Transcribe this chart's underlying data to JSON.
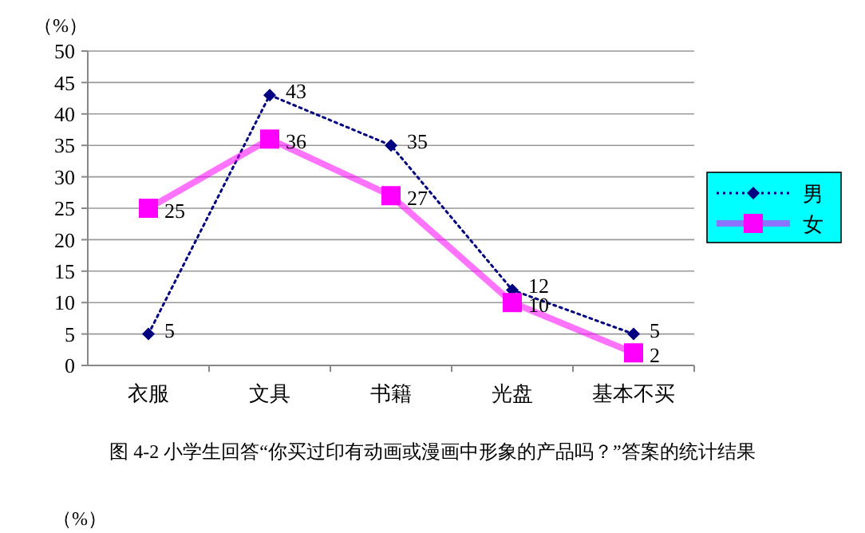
{
  "chart_data": {
    "type": "line",
    "ylabel": "（%）",
    "categories": [
      "衣服",
      "文具",
      "书籍",
      "光盘",
      "基本不买"
    ],
    "series": [
      {
        "name": "男",
        "color": "#000080",
        "values": [
          5,
          43,
          35,
          12,
          5
        ],
        "marker": "diamond",
        "line_style": "dotted"
      },
      {
        "name": "女",
        "color": "#ff00ff",
        "values": [
          25,
          36,
          27,
          10,
          2
        ],
        "marker": "square",
        "line_style": "solid"
      }
    ],
    "ylim": [
      0,
      50
    ],
    "yticks": [
      0,
      5,
      10,
      15,
      20,
      25,
      30,
      35,
      40,
      45,
      50
    ],
    "grid": "y",
    "legend": "right",
    "data_labels": true,
    "annotations": [
      "图 4-2 小学生回答“你买过印有动画或漫画中形象的产品吗？”答案的统计结果",
      "（%）"
    ]
  }
}
